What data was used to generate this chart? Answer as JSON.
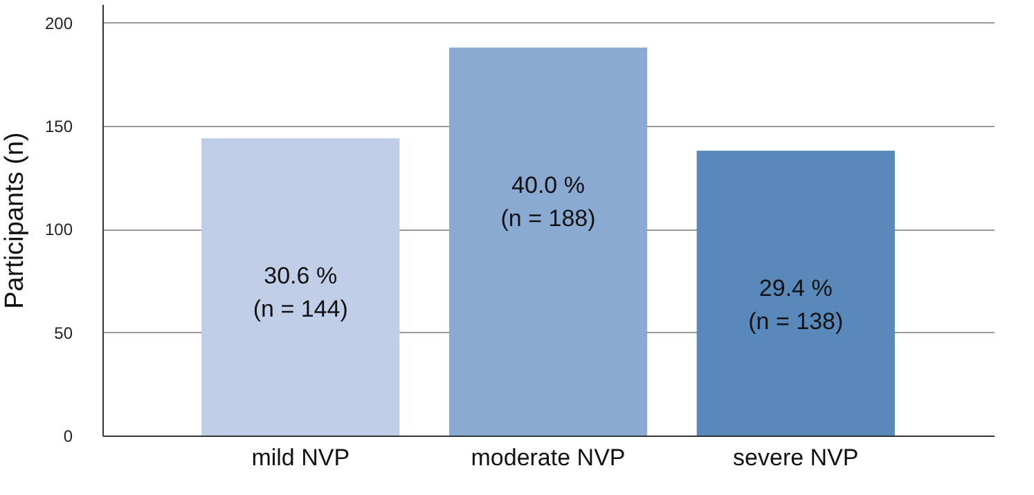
{
  "chart_data": {
    "type": "bar",
    "ylabel": "Participants (n)",
    "categories": [
      "mild NVP",
      "moderate NVP",
      "severe NVP"
    ],
    "values": [
      144,
      188,
      138
    ],
    "colors": [
      "#c0cfe7",
      "#8aaad1",
      "#5889ba"
    ],
    "value_labels": [
      "30.6 %\n(n = 144)",
      "40.0 %\n(n = 188)",
      "29.4 %\n(n = 138)"
    ],
    "ylim": [
      0,
      209
    ],
    "yticks": [
      0,
      50,
      100,
      150,
      200
    ],
    "grid": "y"
  }
}
